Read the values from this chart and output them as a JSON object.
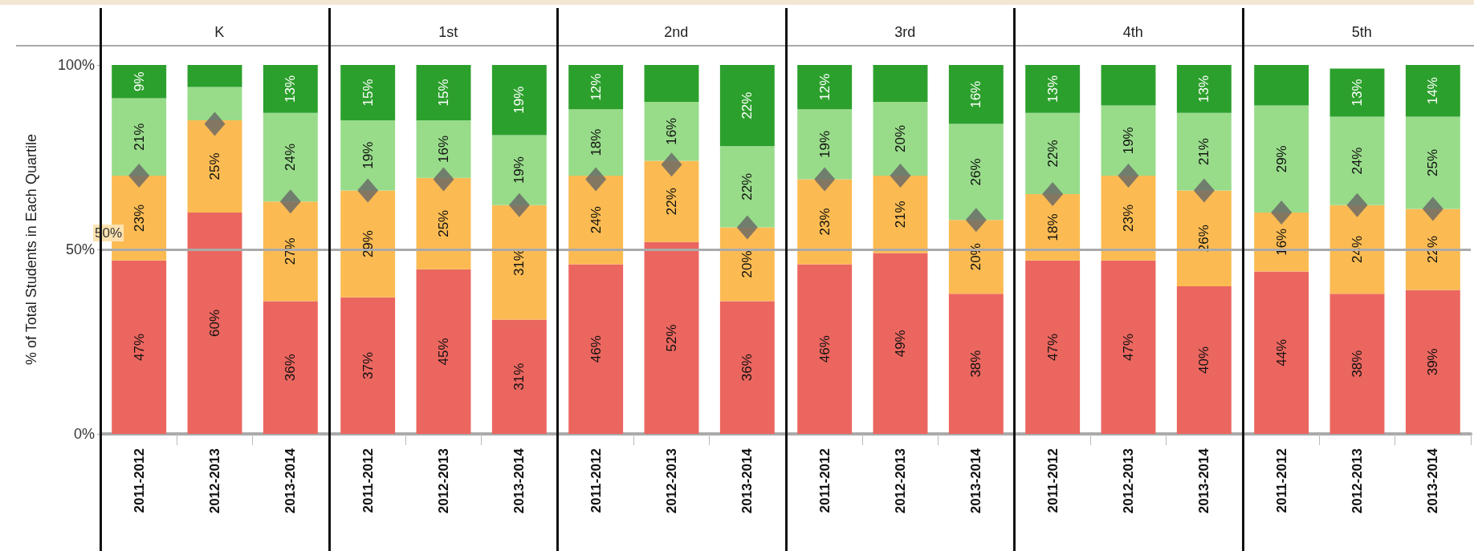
{
  "chart_data": [
    {
      "type": "bar",
      "title": "K",
      "ylabel": "% of Total Students in Each Quartile",
      "stacked": true,
      "marker": "diamond",
      "categories": [
        "2011-2012",
        "2012-2013",
        "2013-2014"
      ],
      "ylim": [
        0,
        100
      ],
      "yticks": [
        {
          "value": 0,
          "label": "0%"
        },
        {
          "value": 50,
          "label": "50%"
        },
        {
          "value": 100,
          "label": "100%"
        }
      ],
      "ref_lines": [
        {
          "axis": "y",
          "value": 50,
          "label": "50%",
          "color": "#aaaaaa"
        }
      ],
      "series": [
        {
          "color": "#eb665f",
          "values": [
            47,
            60,
            36
          ],
          "value_labels": [
            "47%",
            "60%",
            "36%"
          ]
        },
        {
          "color": "#fbbb52",
          "values": [
            23,
            25,
            27
          ],
          "value_labels": [
            "23%",
            "25%",
            "27%"
          ]
        },
        {
          "color": "#98dc8a",
          "values": [
            21,
            9,
            24
          ],
          "value_labels": [
            "21%",
            null,
            "24%"
          ]
        },
        {
          "color": "#2ca02c",
          "values": [
            9,
            6,
            13
          ],
          "value_labels": [
            "9%",
            null,
            "13%"
          ]
        },
        {
          "type": "scatter",
          "color": "#666666",
          "x": [
            "2011-2012",
            "2012-2013",
            "2013-2014"
          ],
          "values": [
            70,
            84,
            63
          ]
        }
      ]
    },
    {
      "type": "bar",
      "title": "1st",
      "stacked": true,
      "marker": "diamond",
      "tick_labels": "x",
      "categories": [
        "2011-2012",
        "2012-2013",
        "2013-2014"
      ],
      "ylim": [
        0,
        100
      ],
      "ref_lines": [
        {
          "axis": "y",
          "value": 50,
          "color": "#aaaaaa"
        }
      ],
      "series": [
        {
          "color": "#eb665f",
          "values": [
            37,
            44.6,
            31
          ],
          "value_labels": [
            "37%",
            "45%",
            "31%"
          ]
        },
        {
          "color": "#fbbb52",
          "values": [
            29,
            24.8,
            31
          ],
          "value_labels": [
            "29%",
            "25%",
            "31%"
          ]
        },
        {
          "color": "#98dc8a",
          "values": [
            19,
            15.6,
            19
          ],
          "value_labels": [
            "19%",
            "16%",
            "19%"
          ]
        },
        {
          "color": "#2ca02c",
          "values": [
            15,
            15,
            19
          ],
          "value_labels": [
            "15%",
            "15%",
            "19%"
          ]
        },
        {
          "type": "scatter",
          "color": "#666666",
          "x": [
            "2011-2012",
            "2012-2013",
            "2013-2014"
          ],
          "values": [
            66,
            69,
            62
          ]
        }
      ]
    },
    {
      "type": "bar",
      "title": "2nd",
      "stacked": true,
      "marker": "diamond",
      "tick_labels": "x",
      "categories": [
        "2011-2012",
        "2012-2013",
        "2013-2014"
      ],
      "ylim": [
        0,
        100
      ],
      "ref_lines": [
        {
          "axis": "y",
          "value": 50,
          "color": "#aaaaaa"
        }
      ],
      "series": [
        {
          "color": "#eb665f",
          "values": [
            46,
            52,
            36
          ],
          "value_labels": [
            "46%",
            "52%",
            "36%"
          ]
        },
        {
          "color": "#fbbb52",
          "values": [
            24,
            22,
            20
          ],
          "value_labels": [
            "24%",
            "22%",
            "20%"
          ]
        },
        {
          "color": "#98dc8a",
          "values": [
            18,
            16,
            22
          ],
          "value_labels": [
            "18%",
            "16%",
            "22%"
          ]
        },
        {
          "color": "#2ca02c",
          "values": [
            12,
            10,
            22
          ],
          "value_labels": [
            "12%",
            null,
            "22%"
          ]
        },
        {
          "type": "scatter",
          "color": "#666666",
          "x": [
            "2011-2012",
            "2012-2013",
            "2013-2014"
          ],
          "values": [
            69,
            73,
            56
          ]
        }
      ]
    },
    {
      "type": "bar",
      "title": "3rd",
      "stacked": true,
      "marker": "diamond",
      "tick_labels": "x",
      "categories": [
        "2011-2012",
        "2012-2013",
        "2013-2014"
      ],
      "ylim": [
        0,
        100
      ],
      "ref_lines": [
        {
          "axis": "y",
          "value": 50,
          "color": "#aaaaaa"
        }
      ],
      "series": [
        {
          "color": "#eb665f",
          "values": [
            46,
            49,
            38
          ],
          "value_labels": [
            "46%",
            "49%",
            "38%"
          ]
        },
        {
          "color": "#fbbb52",
          "values": [
            23,
            21,
            20
          ],
          "value_labels": [
            "23%",
            "21%",
            "20%"
          ]
        },
        {
          "color": "#98dc8a",
          "values": [
            19,
            20,
            26
          ],
          "value_labels": [
            "19%",
            "20%",
            "26%"
          ]
        },
        {
          "color": "#2ca02c",
          "values": [
            12,
            10,
            16
          ],
          "value_labels": [
            "12%",
            null,
            "16%"
          ]
        },
        {
          "type": "scatter",
          "color": "#666666",
          "x": [
            "2011-2012",
            "2012-2013",
            "2013-2014"
          ],
          "values": [
            69,
            70,
            58
          ]
        }
      ]
    },
    {
      "type": "bar",
      "title": "4th",
      "stacked": true,
      "marker": "diamond",
      "tick_labels": "x",
      "categories": [
        "2011-2012",
        "2012-2013",
        "2013-2014"
      ],
      "ylim": [
        0,
        100
      ],
      "ref_lines": [
        {
          "axis": "y",
          "value": 50,
          "color": "#aaaaaa"
        }
      ],
      "series": [
        {
          "color": "#eb665f",
          "values": [
            47,
            47,
            40
          ],
          "value_labels": [
            "47%",
            "47%",
            "40%"
          ]
        },
        {
          "color": "#fbbb52",
          "values": [
            18,
            23,
            26
          ],
          "value_labels": [
            "18%",
            "23%",
            "26%"
          ]
        },
        {
          "color": "#98dc8a",
          "values": [
            22,
            19,
            21
          ],
          "value_labels": [
            "22%",
            "19%",
            "21%"
          ]
        },
        {
          "color": "#2ca02c",
          "values": [
            13,
            11,
            13
          ],
          "value_labels": [
            "13%",
            null,
            "13%"
          ]
        },
        {
          "type": "scatter",
          "color": "#666666",
          "x": [
            "2011-2012",
            "2012-2013",
            "2013-2014"
          ],
          "values": [
            65,
            70,
            66
          ]
        }
      ]
    },
    {
      "type": "bar",
      "title": "5th",
      "stacked": true,
      "marker": "diamond",
      "tick_labels": "x",
      "categories": [
        "2011-2012",
        "2012-2013",
        "2013-2014"
      ],
      "ylim": [
        0,
        100
      ],
      "ref_lines": [
        {
          "axis": "y",
          "value": 50,
          "color": "#aaaaaa"
        }
      ],
      "series": [
        {
          "color": "#eb665f",
          "values": [
            44,
            38,
            39
          ],
          "value_labels": [
            "44%",
            "38%",
            "39%"
          ]
        },
        {
          "color": "#fbbb52",
          "values": [
            16,
            24,
            22
          ],
          "value_labels": [
            "16%",
            "24%",
            "22%"
          ]
        },
        {
          "color": "#98dc8a",
          "values": [
            29,
            24,
            25
          ],
          "value_labels": [
            "29%",
            "24%",
            "25%"
          ]
        },
        {
          "color": "#2ca02c",
          "values": [
            11,
            13,
            14
          ],
          "value_labels": [
            null,
            "13%",
            "14%"
          ]
        },
        {
          "type": "scatter",
          "color": "#666666",
          "x": [
            "2011-2012",
            "2012-2013",
            "2013-2014"
          ],
          "values": [
            60,
            62,
            61
          ]
        }
      ]
    }
  ]
}
